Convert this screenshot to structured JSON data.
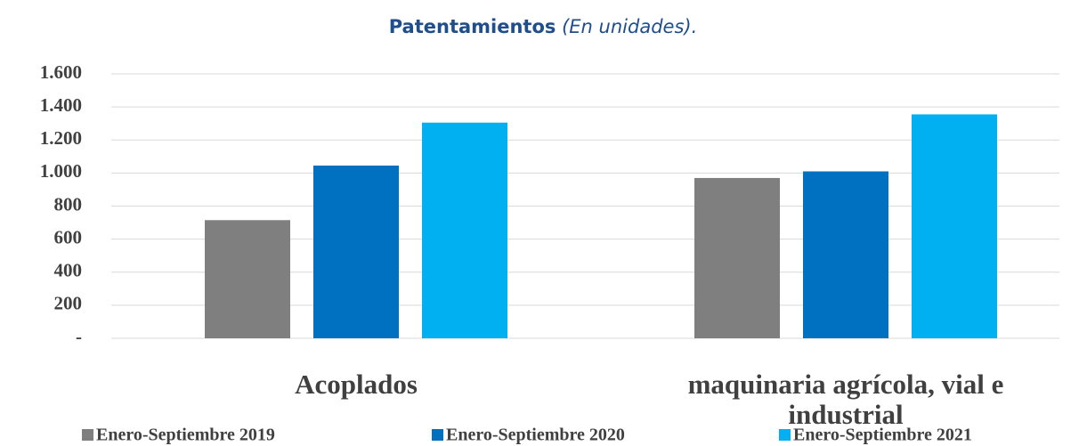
{
  "chart_data": {
    "type": "bar",
    "title": "Patentamientos",
    "subtitle": "(En unidades).",
    "categories": [
      "Acoplados",
      "maquinaria agrícola, vial e industrial"
    ],
    "series": [
      {
        "name": "Enero-Septiembre 2019",
        "color": "#7f7f7f",
        "values": [
          715,
          970
        ]
      },
      {
        "name": "Enero-Septiembre 2020",
        "color": "#0070c0",
        "values": [
          1045,
          1010
        ]
      },
      {
        "name": "Enero-Septiembre 2021",
        "color": "#00b0f0",
        "values": [
          1305,
          1355
        ]
      }
    ],
    "ylim": [
      0,
      1600
    ],
    "yticks": [
      {
        "value": 0,
        "label": "-"
      },
      200,
      400,
      600,
      800,
      {
        "value": 1000,
        "label": "1.000"
      },
      {
        "value": 1200,
        "label": "1.200"
      },
      {
        "value": 1400,
        "label": "1.400"
      },
      {
        "value": 1600,
        "label": "1.600"
      }
    ],
    "grid": true,
    "legend": "bottom"
  }
}
